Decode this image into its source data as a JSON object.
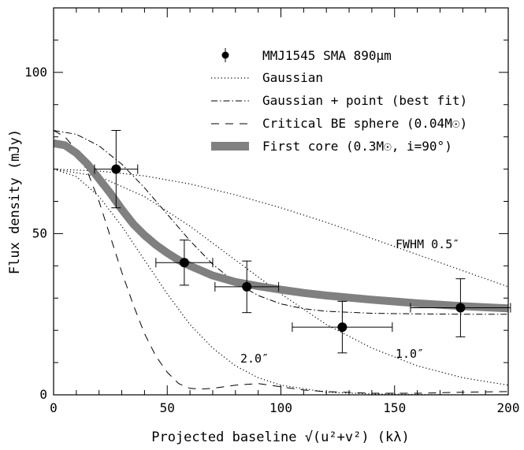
{
  "chart_data": {
    "type": "scatter",
    "title": "",
    "xlabel": "Projected baseline √(u²+v²) (kλ)",
    "ylabel": "Flux density (mJy)",
    "xlim": [
      0,
      200
    ],
    "ylim": [
      0,
      120
    ],
    "x_ticks": [
      0,
      50,
      100,
      150,
      200
    ],
    "y_ticks": [
      0,
      50,
      100
    ],
    "grid": false,
    "legend_position": "top-right",
    "legend": {
      "data": "MMJ1545 SMA 890μm",
      "gaussian": "Gaussian",
      "gauss_point": "Gaussian + point (best fit)",
      "be_sphere": "Critical BE sphere (0.04M☉)",
      "first_core": "First core (0.3M☉, i=90°)"
    },
    "data_points": [
      {
        "x": 27.5,
        "y": 70,
        "xerr": 9.5,
        "yerr": 12
      },
      {
        "x": 57.5,
        "y": 41,
        "xerr": 12.5,
        "yerr": 7
      },
      {
        "x": 85,
        "y": 33.5,
        "xerr": 14,
        "yerr": 8
      },
      {
        "x": 127,
        "y": 21,
        "xerr": 22,
        "yerr": 8
      },
      {
        "x": 179,
        "y": 27,
        "xerr": 22,
        "yerr": 9
      }
    ],
    "series": [
      {
        "name": "Gaussian",
        "style": "dotted",
        "annotation": "FWHM 0.5″",
        "x": [
          0,
          20,
          40,
          60,
          80,
          100,
          120,
          140,
          160,
          180,
          200
        ],
        "y": [
          70,
          69.4,
          67.9,
          65.4,
          62.0,
          58.0,
          53.5,
          48.5,
          43.5,
          38.5,
          33.5
        ]
      },
      {
        "name": "Gaussian",
        "style": "dotted",
        "annotation": "1.0″",
        "x": [
          0,
          20,
          40,
          60,
          80,
          100,
          120,
          140,
          160,
          180,
          200
        ],
        "y": [
          70,
          67.7,
          61.5,
          52.3,
          41.8,
          31.3,
          21.8,
          14.5,
          9.0,
          5.3,
          3.0
        ]
      },
      {
        "name": "Gaussian",
        "style": "dotted",
        "annotation": "2.0″",
        "x": [
          0,
          10,
          20,
          30,
          40,
          50,
          60,
          70,
          80,
          90,
          100,
          120,
          140,
          160,
          180,
          200
        ],
        "y": [
          70,
          67.7,
          61.5,
          52.3,
          41.8,
          31.3,
          21.8,
          14.5,
          9.0,
          5.3,
          3.0,
          0.8,
          0.3,
          0.1,
          0,
          0
        ]
      },
      {
        "name": "Gaussian + point (best fit)",
        "style": "dashdot",
        "x": [
          0,
          10,
          20,
          30,
          40,
          50,
          60,
          70,
          80,
          90,
          100,
          110,
          120,
          140,
          160,
          180,
          200
        ],
        "y": [
          82,
          80.8,
          77.2,
          71.5,
          64.2,
          56.0,
          47.8,
          40.5,
          34.8,
          30.8,
          28.2,
          26.7,
          25.9,
          25.3,
          25.1,
          25,
          25
        ]
      },
      {
        "name": "Critical BE sphere (0.04M☉)",
        "style": "dashed",
        "x": [
          0,
          5,
          10,
          15,
          20,
          25,
          30,
          35,
          40,
          45,
          50,
          55,
          60,
          65,
          70,
          80,
          90,
          100,
          110,
          120,
          140,
          160,
          180,
          200
        ],
        "y": [
          82,
          80,
          76,
          69,
          60,
          49,
          38,
          28,
          19,
          12,
          7,
          3.5,
          2,
          1.8,
          2,
          3,
          3.5,
          2.5,
          1.5,
          1,
          0.5,
          0.5,
          0.8,
          1
        ]
      },
      {
        "name": "First core (0.3M☉, i=90°)",
        "style": "thick-gray",
        "x": [
          0,
          5,
          10,
          15,
          20,
          25,
          30,
          35,
          40,
          45,
          50,
          55,
          60,
          70,
          80,
          90,
          100,
          110,
          120,
          140,
          160,
          180,
          200
        ],
        "y": [
          78,
          77.4,
          75,
          71.5,
          67,
          62.5,
          57.5,
          53,
          49.5,
          46.5,
          44,
          41.8,
          40,
          37,
          35,
          33.7,
          32.6,
          31.6,
          30.8,
          29.5,
          28.4,
          27.5,
          26.8
        ]
      }
    ],
    "colors": {
      "axis": "#000000",
      "first_core": "#808080",
      "marker": "#000000"
    }
  }
}
